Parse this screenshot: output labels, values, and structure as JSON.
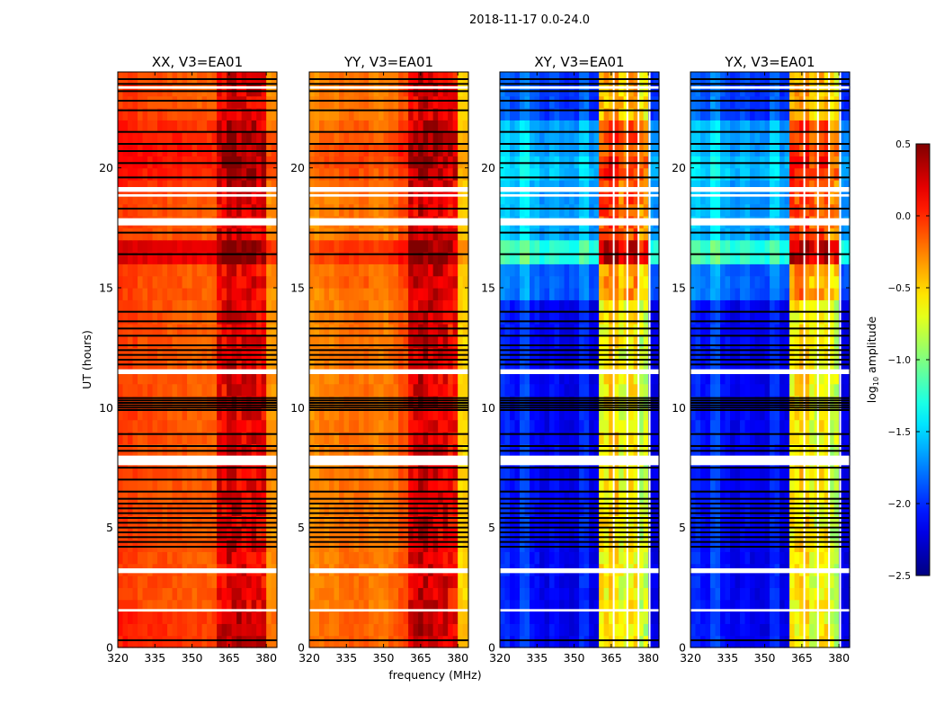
{
  "chart_data": {
    "type": "heatmap",
    "suptitle": "2018-11-17 0.0-24.0",
    "xlabel": "frequency (MHz)",
    "ylabel": "UT (hours)",
    "xlim": [
      320,
      384.3
    ],
    "ylim": [
      0,
      24
    ],
    "xticks": [
      "320",
      "335",
      "350",
      "365",
      "380"
    ],
    "yticks": [
      "0",
      "5",
      "10",
      "15",
      "20"
    ],
    "freq_bin_edges_start": 320,
    "freq_bin_width_mhz": 4,
    "time_bin_width_hours": 0.5,
    "colorbar": {
      "label": "log10 amplitude",
      "label_main": "log",
      "label_sub": "10",
      "label_rest": " amplitude",
      "range": [
        -2.5,
        0.5
      ],
      "ticks": [
        "0.5",
        "0.0",
        "−0.5",
        "−1.0",
        "−1.5",
        "−2.0",
        "−2.5"
      ],
      "tick_values": [
        0.5,
        0.0,
        -0.5,
        -1.0,
        -1.5,
        -2.0,
        -2.5
      ],
      "colormap": "jet"
    },
    "flagged_white_hours": [
      [
        1.5,
        1.6
      ],
      [
        3.1,
        3.3
      ],
      [
        7.6,
        8.0
      ],
      [
        11.4,
        11.6
      ],
      [
        17.6,
        17.9
      ],
      [
        18.8,
        18.9
      ],
      [
        19.0,
        19.2
      ],
      [
        23.3,
        23.4
      ]
    ],
    "black_line_hours": [
      0.3,
      4.2,
      4.4,
      4.6,
      4.8,
      5.0,
      5.2,
      5.4,
      5.6,
      5.8,
      6.0,
      6.2,
      6.5,
      7.0,
      7.5,
      8.2,
      8.4,
      8.9,
      9.9,
      10.0,
      10.1,
      10.2,
      10.3,
      10.4,
      11.8,
      12.0,
      12.2,
      12.4,
      12.6,
      13.0,
      13.3,
      13.6,
      14.0,
      16.4,
      17.3,
      18.3,
      19.6,
      20.2,
      20.7,
      21.0,
      21.5,
      22.4,
      22.8,
      23.2,
      23.5,
      23.7
    ],
    "panels": [
      {
        "title": "XX, V3=EA01",
        "band_profile": [
          -0.05,
          -0.05,
          -0.1,
          -0.1,
          -0.1,
          -0.12,
          -0.12,
          -0.15,
          -0.15,
          -0.15,
          0.15,
          0.25,
          0.2,
          0.2,
          0.15,
          -0.3
        ],
        "time_offset": [
          0.1,
          0.1,
          0.1,
          0,
          0,
          0,
          0,
          0,
          0,
          0,
          0,
          0,
          0,
          0,
          0,
          0,
          0,
          0,
          0,
          0,
          0,
          0,
          0,
          0,
          0,
          0,
          0,
          0,
          0,
          0,
          0,
          0,
          0.3,
          0.3,
          0,
          0,
          0,
          0,
          0.1,
          0.15,
          0.2,
          0.2,
          0.15,
          0.1,
          0.05,
          0,
          0,
          0
        ],
        "white_freq_gaps_mhz": []
      },
      {
        "title": "YY, V3=EA01",
        "band_profile": [
          -0.3,
          -0.25,
          -0.25,
          -0.2,
          -0.2,
          -0.2,
          -0.25,
          -0.25,
          -0.2,
          -0.1,
          0.2,
          0.3,
          0.25,
          0.2,
          0.1,
          -0.5
        ],
        "time_offset": [
          0.05,
          0.05,
          0.05,
          0,
          0,
          0,
          0,
          0,
          0,
          0,
          0,
          0,
          0,
          0,
          0,
          0,
          0,
          0,
          0,
          0,
          0,
          0,
          0,
          0,
          0,
          0,
          0,
          0,
          0,
          0,
          0.05,
          0.05,
          0.2,
          0.2,
          0,
          0,
          0,
          0,
          0.05,
          0.1,
          0.15,
          0.15,
          0.1,
          0.05,
          0,
          0,
          0,
          0
        ],
        "white_freq_gaps_mhz": []
      },
      {
        "title": "XY, V3=EA01",
        "band_profile": [
          -2.0,
          -2.1,
          -1.9,
          -2.1,
          -2.2,
          -2.1,
          -2.2,
          -2.2,
          -2.0,
          -2.2,
          -0.6,
          -0.5,
          -0.7,
          -0.6,
          -0.8,
          -2.2
        ],
        "time_offset": [
          0,
          0,
          0,
          0,
          0,
          0,
          0,
          0,
          0,
          0,
          0,
          0,
          0,
          0,
          0,
          0,
          0,
          0,
          0,
          0,
          0,
          0,
          0,
          0,
          0,
          0,
          0,
          0,
          0,
          0.3,
          0.3,
          0.3,
          0.9,
          0.9,
          0.5,
          0.5,
          0.5,
          0.5,
          0.5,
          0.6,
          0.6,
          0.5,
          0.5,
          0.5,
          0.2,
          0.2,
          0.2,
          0.2
        ],
        "white_freq_gaps_mhz": [
          366,
          371.5,
          376,
          380.5
        ]
      },
      {
        "title": "YX, V3=EA01",
        "band_profile": [
          -2.0,
          -2.1,
          -1.9,
          -2.1,
          -2.2,
          -2.1,
          -2.2,
          -2.2,
          -2.0,
          -2.2,
          -0.6,
          -0.5,
          -0.7,
          -0.6,
          -0.8,
          -2.2
        ],
        "time_offset": [
          0,
          0,
          0,
          0,
          0,
          0,
          0,
          0,
          0,
          0,
          0,
          0,
          0,
          0,
          0,
          0,
          0,
          0,
          0,
          0,
          0,
          0,
          0,
          0,
          0,
          0,
          0,
          0,
          0,
          0.3,
          0.3,
          0.3,
          0.9,
          0.9,
          0.5,
          0.5,
          0.5,
          0.5,
          0.5,
          0.6,
          0.6,
          0.5,
          0.5,
          0.5,
          0.2,
          0.2,
          0.2,
          0.2
        ],
        "white_freq_gaps_mhz": [
          366,
          371.5,
          376,
          380.5
        ]
      }
    ]
  }
}
